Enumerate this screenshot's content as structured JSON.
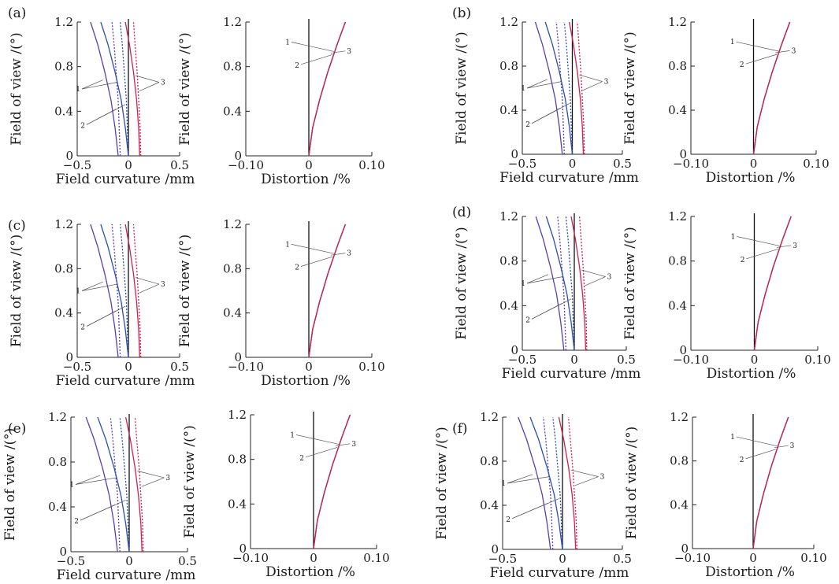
{
  "ylabel": "Field of view /(°)",
  "panels": [
    {
      "label": "(a)"
    },
    {
      "label": "(b)"
    },
    {
      "label": "(c)"
    },
    {
      "label": "(d)"
    },
    {
      "label": "(e)"
    },
    {
      "label": "(f)"
    }
  ],
  "chart_data": [
    {
      "type": "line",
      "subplot": "field-curvature",
      "xlabel": "Field curvature /mm",
      "ylabel": "Field of view /(°)",
      "xlim": [
        -0.5,
        0.5
      ],
      "ylim": [
        0,
        1.2
      ],
      "xticks": [
        "−0.5",
        "0",
        "0.5"
      ],
      "yticks": [
        "0",
        "0.4",
        "0.8",
        "1.2"
      ],
      "grid": false,
      "curve_labels": [
        "1",
        "2",
        "3"
      ],
      "series": [
        {
          "label": "1",
          "style": "solid",
          "color": "#5b3fb0",
          "x": [
            -0.1,
            -0.13,
            -0.17,
            -0.23,
            -0.3,
            -0.37
          ],
          "y": [
            0,
            0.25,
            0.5,
            0.75,
            1.0,
            1.2
          ]
        },
        {
          "label": "1",
          "style": "dotted",
          "color": "#5b3fb0",
          "x": [
            -0.08,
            -0.09,
            -0.1,
            -0.12,
            -0.14,
            -0.16
          ],
          "y": [
            0,
            0.25,
            0.5,
            0.75,
            1.0,
            1.2
          ]
        },
        {
          "label": "2",
          "style": "solid",
          "color": "#2a4fb0",
          "x": [
            0,
            -0.03,
            -0.07,
            -0.13,
            -0.2,
            -0.27
          ],
          "y": [
            0,
            0.25,
            0.5,
            0.75,
            1.0,
            1.2
          ]
        },
        {
          "label": "2",
          "style": "dotted",
          "color": "#2a4fb0",
          "x": [
            0,
            -0.01,
            -0.02,
            -0.04,
            -0.06,
            -0.08
          ],
          "y": [
            0,
            0.25,
            0.5,
            0.75,
            1.0,
            1.2
          ]
        },
        {
          "label": "3",
          "style": "solid",
          "color": "#d0204e",
          "x": [
            0.11,
            0.1,
            0.08,
            0.05,
            0.01,
            -0.03
          ],
          "y": [
            0,
            0.25,
            0.5,
            0.75,
            1.0,
            1.2
          ]
        },
        {
          "label": "3",
          "style": "dotted",
          "color": "#d0204e",
          "x": [
            0.12,
            0.115,
            0.1,
            0.085,
            0.065,
            0.05
          ],
          "y": [
            0,
            0.25,
            0.5,
            0.75,
            1.0,
            1.2
          ]
        }
      ]
    },
    {
      "type": "line",
      "subplot": "distortion",
      "xlabel": "Distortion /%",
      "ylabel": "Field of view /(°)",
      "xlim": [
        -0.1,
        0.1
      ],
      "ylim": [
        0,
        1.2
      ],
      "xticks": [
        "−0.10",
        "0",
        "0.10"
      ],
      "yticks": [
        "0",
        "0.4",
        "0.8",
        "1.2"
      ],
      "grid": false,
      "curve_labels": [
        "1",
        "2",
        "3"
      ],
      "series": [
        {
          "label": "1",
          "color": "#5b3fb0",
          "x": [
            0,
            0.006,
            0.017,
            0.03,
            0.045,
            0.058
          ],
          "y": [
            0,
            0.25,
            0.5,
            0.75,
            1.0,
            1.2
          ]
        },
        {
          "label": "2",
          "color": "#2a4fb0",
          "x": [
            0,
            0.006,
            0.017,
            0.03,
            0.045,
            0.058
          ],
          "y": [
            0,
            0.25,
            0.5,
            0.75,
            1.0,
            1.2
          ]
        },
        {
          "label": "3",
          "color": "#d0204e",
          "x": [
            0,
            0.006,
            0.017,
            0.03,
            0.045,
            0.058
          ],
          "y": [
            0,
            0.25,
            0.5,
            0.75,
            1.0,
            1.2
          ]
        }
      ]
    }
  ]
}
